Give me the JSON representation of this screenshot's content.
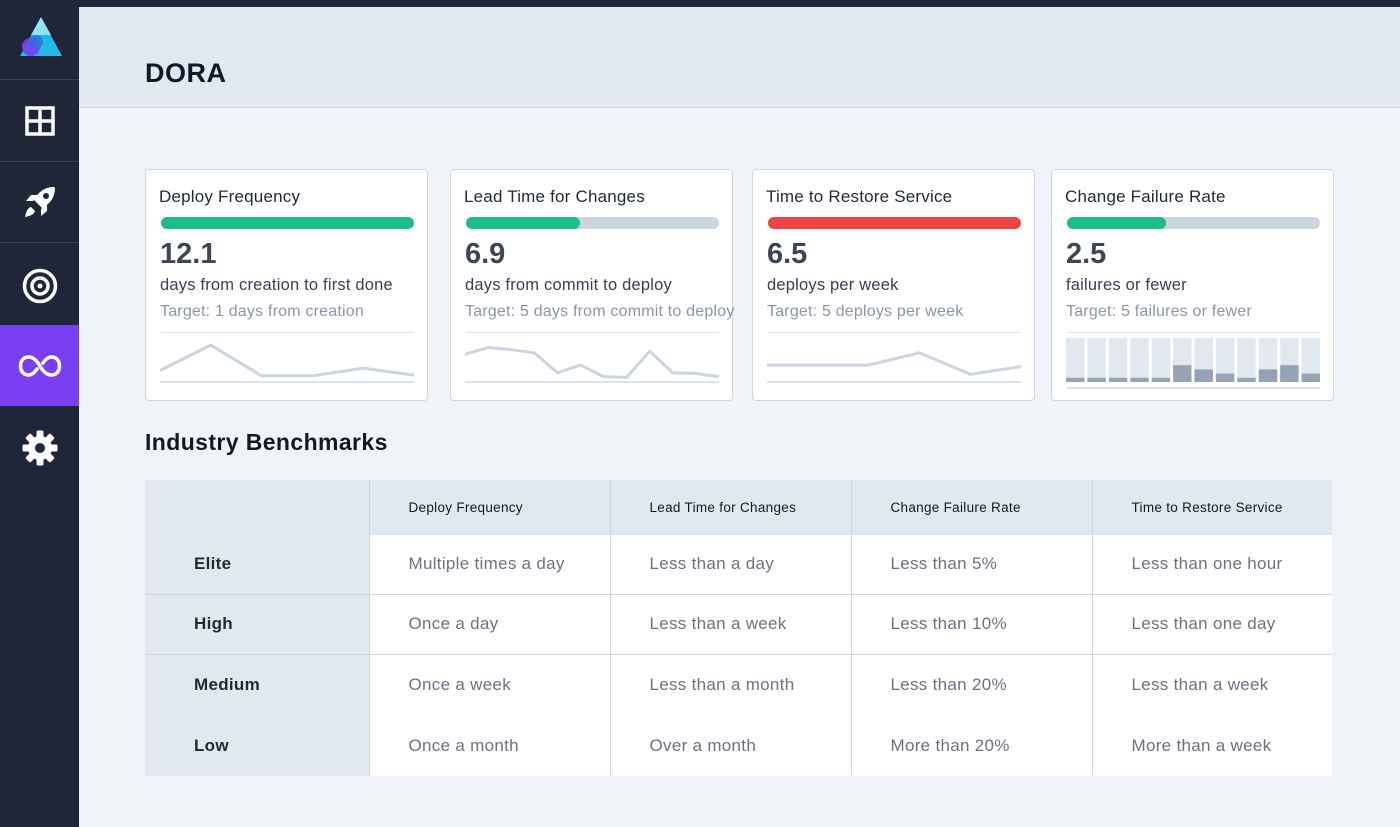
{
  "page": {
    "title": "DORA"
  },
  "sidebar": {
    "items": [
      {
        "icon": "dashboard-grid-icon"
      },
      {
        "icon": "rocket-icon"
      },
      {
        "icon": "target-icon"
      },
      {
        "icon": "infinity-loop-icon",
        "active": true
      },
      {
        "icon": "gear-icon"
      }
    ]
  },
  "colors": {
    "green": "#1dbd86",
    "red": "#ef4444",
    "track": "#cbd5e1",
    "accent": "#7b3ff2"
  },
  "cards": [
    {
      "title": "Deploy Frequency",
      "progress": 1.0,
      "progress_color": "#1dbd86",
      "value": "12.1",
      "unit": "days from creation to first done",
      "target": "Target: 1 days from creation",
      "trend": [
        15,
        48,
        8,
        8,
        18,
        9
      ]
    },
    {
      "title": "Lead Time for Changes",
      "progress": 0.45,
      "progress_color": "#1dbd86",
      "value": "6.9",
      "unit": "days from commit to deploy",
      "target": "Target: 5 days from commit to deploy",
      "trend": [
        36,
        45,
        42,
        38,
        12,
        22,
        7,
        6,
        40,
        12,
        11,
        7
      ]
    },
    {
      "title": "Time to Restore Service",
      "progress": 1.0,
      "progress_color": "#ef4444",
      "value": "6.5",
      "unit": "deploys per week",
      "target": "Target: 5 deploys per week",
      "trend": [
        22,
        22,
        22,
        38,
        10,
        20
      ]
    },
    {
      "title": "Change Failure Rate",
      "progress": 0.39,
      "progress_color": "#1dbd86",
      "value": "2.5",
      "unit": "failures or fewer",
      "target": "Target: 5 failures or fewer",
      "bars": [
        1,
        1,
        1,
        1,
        1,
        4,
        3,
        2,
        1,
        3,
        4,
        2
      ]
    }
  ],
  "benchmarks": {
    "title": "Industry Benchmarks",
    "columns": [
      "Deploy Frequency",
      "Lead Time for Changes",
      "Change Failure Rate",
      "Time to Restore Service"
    ],
    "rows": [
      {
        "level": "Elite",
        "values": [
          "Multiple times a day",
          "Less than a day",
          "Less than 5%",
          "Less than one hour"
        ]
      },
      {
        "level": "High",
        "values": [
          "Once a day",
          "Less than a week",
          "Less than 10%",
          "Less than one day"
        ]
      },
      {
        "level": "Medium",
        "values": [
          "Once a week",
          "Less than a month",
          "Less than 20%",
          "Less than a week"
        ]
      },
      {
        "level": "Low",
        "values": [
          "Once a month",
          "Over a month",
          "More than 20%",
          "More than a week"
        ]
      }
    ]
  }
}
